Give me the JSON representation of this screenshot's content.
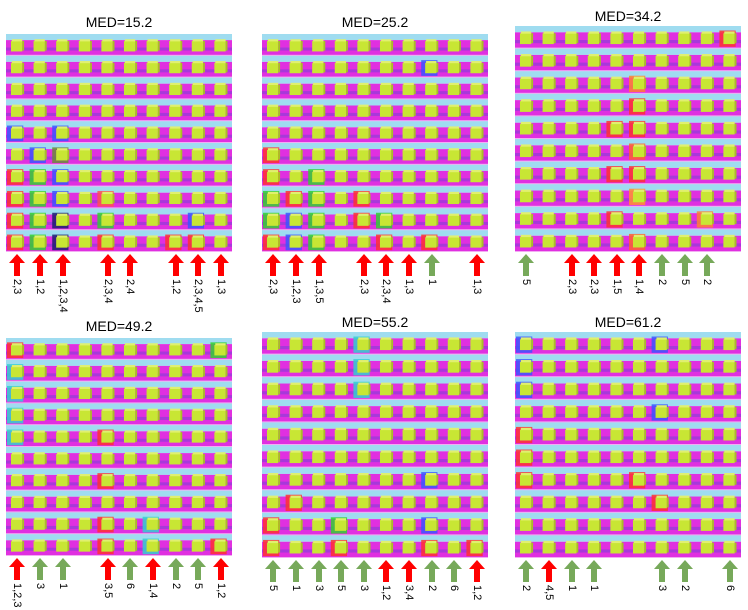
{
  "colors": {
    "red": "#ff0000",
    "green": "#77a95a",
    "sky": "#9fdcf0",
    "magenta": "#e030e0",
    "purple": "#7a3fd6",
    "cube": "#c8e634",
    "cubeDark": "#a8c024",
    "cubeTop": "#e0f070"
  },
  "panels": [
    {
      "title": "MED=15.2",
      "highlights": [
        {
          "r": 4,
          "c": 0,
          "color": "#3a55ff"
        },
        {
          "r": 4,
          "c": 2,
          "color": "#3a55ff"
        },
        {
          "r": 5,
          "c": 1,
          "color": "#3a55ff"
        },
        {
          "r": 5,
          "c": 2,
          "color": "#6a8a3a"
        },
        {
          "r": 6,
          "c": 0,
          "color": "#ff3030"
        },
        {
          "r": 6,
          "c": 1,
          "color": "#30d030"
        },
        {
          "r": 6,
          "c": 2,
          "color": "#3a55ff"
        },
        {
          "r": 7,
          "c": 0,
          "color": "#ff3030"
        },
        {
          "r": 7,
          "c": 1,
          "color": "#30d030"
        },
        {
          "r": 7,
          "c": 2,
          "color": "#3a55ff"
        },
        {
          "r": 8,
          "c": 0,
          "color": "#ff3030"
        },
        {
          "r": 8,
          "c": 1,
          "color": "#30d030"
        },
        {
          "r": 8,
          "c": 2,
          "color": "#1a2070"
        },
        {
          "r": 9,
          "c": 0,
          "color": "#ff3030"
        },
        {
          "r": 9,
          "c": 1,
          "color": "#30d030"
        },
        {
          "r": 9,
          "c": 2,
          "color": "#1a2070"
        },
        {
          "r": 7,
          "c": 4,
          "color": "#ff5050"
        },
        {
          "r": 8,
          "c": 4,
          "color": "#30d030"
        },
        {
          "r": 9,
          "c": 4,
          "color": "#ff3030"
        },
        {
          "r": 9,
          "c": 7,
          "color": "#ff3030"
        },
        {
          "r": 9,
          "c": 8,
          "color": "#ff3030"
        },
        {
          "r": 8,
          "c": 8,
          "color": "#3a55ff"
        }
      ],
      "arrows": [
        {
          "color": "red",
          "label": "2,3"
        },
        {
          "color": "red",
          "label": "1,2"
        },
        {
          "color": "red",
          "label": "1,2,3,4"
        },
        {
          "color": "red",
          "label": "2,3,4"
        },
        {
          "color": "red",
          "label": "2,4"
        },
        {
          "color": "red",
          "label": "1,2"
        },
        {
          "color": "red",
          "label": "2,3,4,5"
        },
        {
          "color": "red",
          "label": "1,3"
        }
      ]
    },
    {
      "title": "MED=25.2",
      "highlights": [
        {
          "r": 5,
          "c": 0,
          "color": "#ff3030"
        },
        {
          "r": 6,
          "c": 0,
          "color": "#ff3030"
        },
        {
          "r": 6,
          "c": 2,
          "color": "#30d030"
        },
        {
          "r": 7,
          "c": 0,
          "color": "#30d030"
        },
        {
          "r": 7,
          "c": 1,
          "color": "#ff3030"
        },
        {
          "r": 7,
          "c": 2,
          "color": "#30d030"
        },
        {
          "r": 8,
          "c": 0,
          "color": "#30d030"
        },
        {
          "r": 8,
          "c": 1,
          "color": "#3a55ff"
        },
        {
          "r": 8,
          "c": 2,
          "color": "#30d030"
        },
        {
          "r": 9,
          "c": 0,
          "color": "#ff3030"
        },
        {
          "r": 9,
          "c": 1,
          "color": "#3a55ff"
        },
        {
          "r": 9,
          "c": 2,
          "color": "#30d030"
        },
        {
          "r": 7,
          "c": 4,
          "color": "#ff3030"
        },
        {
          "r": 8,
          "c": 4,
          "color": "#ff3030"
        },
        {
          "r": 8,
          "c": 5,
          "color": "#30d030"
        },
        {
          "r": 9,
          "c": 5,
          "color": "#ff3030"
        },
        {
          "r": 1,
          "c": 7,
          "color": "#3a55ff"
        },
        {
          "r": 9,
          "c": 7,
          "color": "#ff3030"
        }
      ],
      "arrows": [
        {
          "color": "red",
          "label": "2,3"
        },
        {
          "color": "red",
          "label": "1,2,3"
        },
        {
          "color": "red",
          "label": "1,3,5"
        },
        {
          "color": "red",
          "label": "2,3"
        },
        {
          "color": "red",
          "label": "2,3,4"
        },
        {
          "color": "red",
          "label": "1,3"
        },
        {
          "color": "green",
          "label": "1"
        },
        {
          "color": "red",
          "label": "1,3"
        }
      ]
    },
    {
      "title": "MED=34.2",
      "highlights": [
        {
          "r": 2,
          "c": 5,
          "color": "#ff8030"
        },
        {
          "r": 3,
          "c": 5,
          "color": "#ff3030"
        },
        {
          "r": 4,
          "c": 4,
          "color": "#ff3030"
        },
        {
          "r": 4,
          "c": 5,
          "color": "#ff3030"
        },
        {
          "r": 5,
          "c": 5,
          "color": "#ff6030"
        },
        {
          "r": 6,
          "c": 4,
          "color": "#ff3030"
        },
        {
          "r": 6,
          "c": 5,
          "color": "#ff3030"
        },
        {
          "r": 7,
          "c": 5,
          "color": "#ff9030"
        },
        {
          "r": 8,
          "c": 4,
          "color": "#ff3030"
        },
        {
          "r": 9,
          "c": 5,
          "color": "#ff6030"
        },
        {
          "r": 0,
          "c": 9,
          "color": "#ff3030"
        },
        {
          "r": 8,
          "c": 8,
          "color": "#ff8030"
        }
      ],
      "arrows": [
        {
          "color": "green",
          "label": "5"
        },
        {
          "color": "red",
          "label": "2,3"
        },
        {
          "color": "red",
          "label": "2,3"
        },
        {
          "color": "red",
          "label": "1,5"
        },
        {
          "color": "red",
          "label": "1,4"
        },
        {
          "color": "green",
          "label": "2"
        },
        {
          "color": "green",
          "label": "5"
        },
        {
          "color": "green",
          "label": "2"
        }
      ]
    },
    {
      "title": "MED=49.2",
      "highlights": [
        {
          "r": 0,
          "c": 0,
          "color": "#ff3030"
        },
        {
          "r": 1,
          "c": 0,
          "color": "#30d0d0"
        },
        {
          "r": 2,
          "c": 0,
          "color": "#30d0d0"
        },
        {
          "r": 3,
          "c": 0,
          "color": "#30d0d0"
        },
        {
          "r": 4,
          "c": 0,
          "color": "#30d0d0"
        },
        {
          "r": 0,
          "c": 9,
          "color": "#30d030"
        },
        {
          "r": 4,
          "c": 4,
          "color": "#ff3030"
        },
        {
          "r": 6,
          "c": 4,
          "color": "#ff3030"
        },
        {
          "r": 8,
          "c": 4,
          "color": "#ff3030"
        },
        {
          "r": 9,
          "c": 4,
          "color": "#ff3030"
        },
        {
          "r": 8,
          "c": 6,
          "color": "#30d0d0"
        },
        {
          "r": 9,
          "c": 6,
          "color": "#30d0d0"
        },
        {
          "r": 9,
          "c": 9,
          "color": "#ff3030"
        }
      ],
      "arrows": [
        {
          "color": "red",
          "label": "1,2,3"
        },
        {
          "color": "green",
          "label": "3"
        },
        {
          "color": "green",
          "label": "1"
        },
        {
          "color": "red",
          "label": "3,5"
        },
        {
          "color": "green",
          "label": "6"
        },
        {
          "color": "red",
          "label": "1,4"
        },
        {
          "color": "green",
          "label": "2"
        },
        {
          "color": "green",
          "label": "5"
        },
        {
          "color": "red",
          "label": "1,2"
        }
      ]
    },
    {
      "title": "MED=55.2",
      "highlights": [
        {
          "r": 0,
          "c": 4,
          "color": "#30d0d0"
        },
        {
          "r": 1,
          "c": 4,
          "color": "#30d0d0"
        },
        {
          "r": 2,
          "c": 4,
          "color": "#30d0d0"
        },
        {
          "r": 8,
          "c": 0,
          "color": "#ff3030"
        },
        {
          "r": 9,
          "c": 0,
          "color": "#ff3030"
        },
        {
          "r": 7,
          "c": 1,
          "color": "#ff3030"
        },
        {
          "r": 8,
          "c": 3,
          "color": "#30d030"
        },
        {
          "r": 9,
          "c": 3,
          "color": "#ff3030"
        },
        {
          "r": 6,
          "c": 7,
          "color": "#3a55ff"
        },
        {
          "r": 8,
          "c": 7,
          "color": "#3a55ff"
        },
        {
          "r": 9,
          "c": 7,
          "color": "#ff3030"
        },
        {
          "r": 9,
          "c": 9,
          "color": "#ff3030"
        }
      ],
      "arrows": [
        {
          "color": "green",
          "label": "5"
        },
        {
          "color": "green",
          "label": "1"
        },
        {
          "color": "green",
          "label": "3"
        },
        {
          "color": "green",
          "label": "5"
        },
        {
          "color": "green",
          "label": "3"
        },
        {
          "color": "red",
          "label": "1,2"
        },
        {
          "color": "red",
          "label": "3,4"
        },
        {
          "color": "green",
          "label": "2"
        },
        {
          "color": "green",
          "label": "6"
        },
        {
          "color": "red",
          "label": "1,2"
        }
      ]
    },
    {
      "title": "MED=61.2",
      "highlights": [
        {
          "r": 0,
          "c": 0,
          "color": "#3a55ff"
        },
        {
          "r": 1,
          "c": 0,
          "color": "#3a55ff"
        },
        {
          "r": 2,
          "c": 0,
          "color": "#3a55ff"
        },
        {
          "r": 4,
          "c": 0,
          "color": "#ff3030"
        },
        {
          "r": 5,
          "c": 0,
          "color": "#ff3030"
        },
        {
          "r": 6,
          "c": 0,
          "color": "#ff3030"
        },
        {
          "r": 0,
          "c": 6,
          "color": "#3a55ff"
        },
        {
          "r": 3,
          "c": 6,
          "color": "#3a55ff"
        },
        {
          "r": 6,
          "c": 5,
          "color": "#ff3030"
        },
        {
          "r": 7,
          "c": 6,
          "color": "#ff3030"
        }
      ],
      "arrows": [
        {
          "color": "green",
          "label": "2"
        },
        {
          "color": "red",
          "label": "4,5"
        },
        {
          "color": "green",
          "label": "1"
        },
        {
          "color": "green",
          "label": "1"
        },
        {
          "color": "green",
          "label": "3"
        },
        {
          "color": "green",
          "label": "2"
        },
        {
          "color": "green",
          "label": "6"
        }
      ]
    }
  ]
}
